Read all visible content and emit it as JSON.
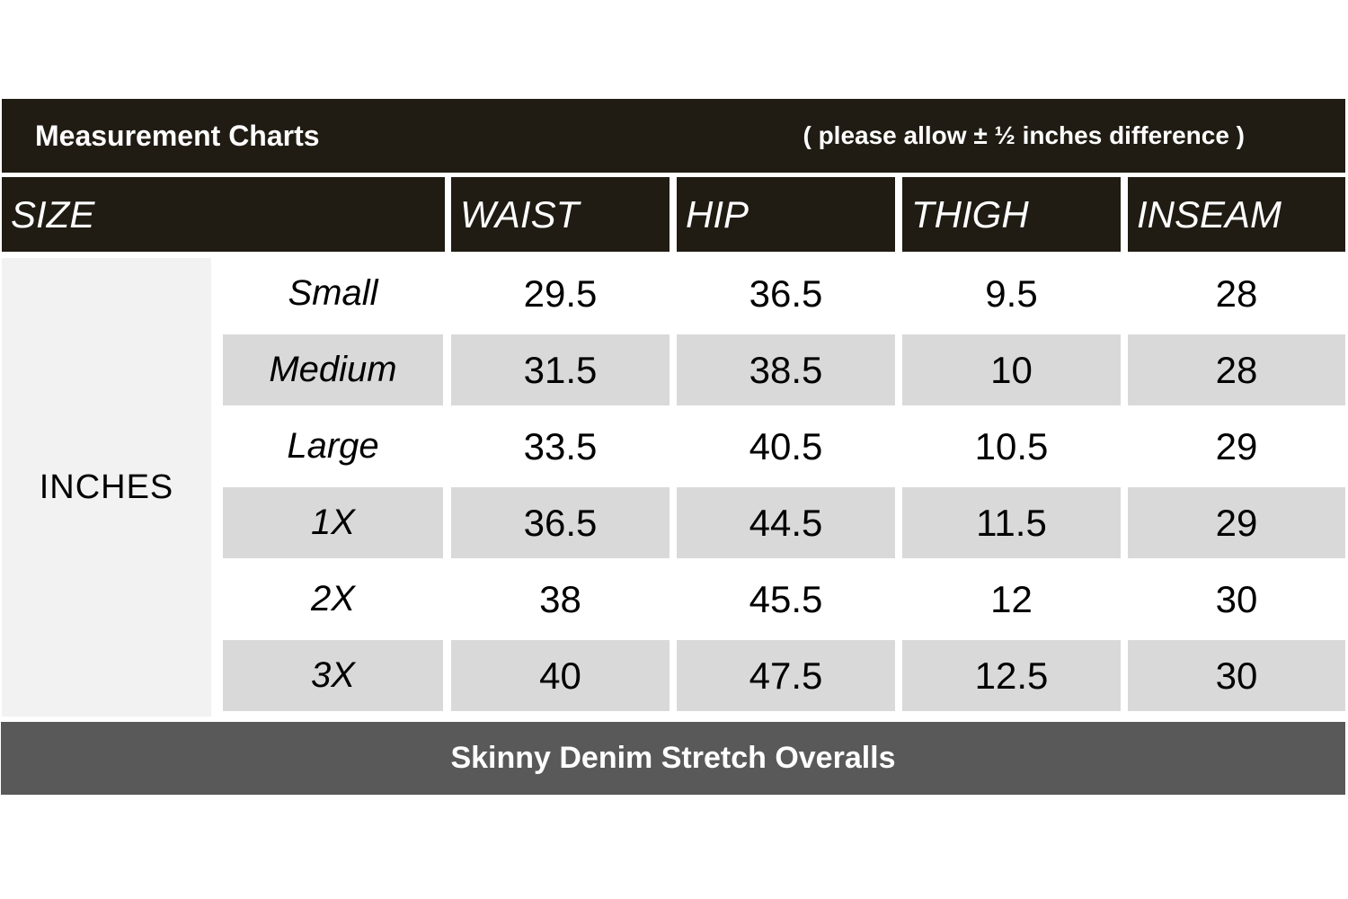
{
  "chart_data": {
    "type": "table",
    "title": "Measurement Charts",
    "note": "( please allow ± ½ inches difference )",
    "unit_label": "INCHES",
    "columns": [
      "SIZE",
      "WAIST",
      "HIP",
      "THIGH",
      "INSEAM"
    ],
    "rows": [
      {
        "size": "Small",
        "waist": "29.5",
        "hip": "36.5",
        "thigh": "9.5",
        "inseam": "28"
      },
      {
        "size": "Medium",
        "waist": "31.5",
        "hip": "38.5",
        "thigh": "10",
        "inseam": "28"
      },
      {
        "size": "Large",
        "waist": "33.5",
        "hip": "40.5",
        "thigh": "10.5",
        "inseam": "29"
      },
      {
        "size": "1X",
        "waist": "36.5",
        "hip": "44.5",
        "thigh": "11.5",
        "inseam": "29"
      },
      {
        "size": "2X",
        "waist": "38",
        "hip": "45.5",
        "thigh": "12",
        "inseam": "30"
      },
      {
        "size": "3X",
        "waist": "40",
        "hip": "47.5",
        "thigh": "12.5",
        "inseam": "30"
      }
    ],
    "product_name": "Skinny Denim Stretch Overalls",
    "layout_hints": {
      "alternating_row_shading": true,
      "shaded_rows": [
        "Medium",
        "1X",
        "3X"
      ]
    }
  },
  "colors": {
    "header_bg": "#201c13",
    "header_text": "#ffffff",
    "alt_row_bg": "#d9d9d9",
    "unit_column_bg": "#f2f2f2",
    "footer_bg": "#595959",
    "body_text": "#000000"
  }
}
